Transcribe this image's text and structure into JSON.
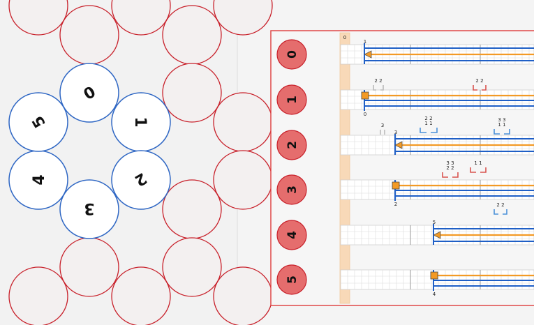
{
  "left_panel": {
    "cell_numbers": [
      "0",
      "1",
      "2",
      "3",
      "4",
      "5"
    ]
  },
  "right_panel": {
    "highlight_label": "0",
    "rows": [
      {
        "id": "0",
        "track_label": "1",
        "tail_label": "",
        "end_marker": "triangle"
      },
      {
        "id": "1",
        "track_label": "",
        "tail_label": "0",
        "end_marker": "square"
      },
      {
        "id": "2",
        "track_label": "3",
        "tail_label": "",
        "end_marker": "triangle"
      },
      {
        "id": "3",
        "track_label": "",
        "tail_label": "2",
        "end_marker": "square"
      },
      {
        "id": "4",
        "track_label": "5",
        "tail_label": "",
        "end_marker": "triangle"
      },
      {
        "id": "5",
        "track_label": "",
        "tail_label": "4",
        "end_marker": "square"
      }
    ],
    "bracket_labels": [
      {
        "text": "2 2",
        "color": "#bbbbbb"
      },
      {
        "text": "2 2",
        "color": "#d9534f"
      },
      {
        "text": "2 2 / 1 1",
        "color": "#4a90d9"
      },
      {
        "text": "3",
        "color": "#bbbbbb"
      },
      {
        "text": "3 3 / 1 1",
        "color": "#4a90d9"
      },
      {
        "text": "3 3 / 2 2",
        "color": "#d9534f"
      },
      {
        "text": "1 1",
        "color": "#d9534f"
      },
      {
        "text": "2 2",
        "color": "#4a90d9"
      }
    ]
  },
  "colors": {
    "red_outline": "#c8202a",
    "blue_outline": "#2f67c4",
    "track_blue": "#1f5fc6",
    "track_orange": "#f39a25",
    "highlight": "#f8d9b8",
    "badge_fill": "#e56d6d"
  }
}
